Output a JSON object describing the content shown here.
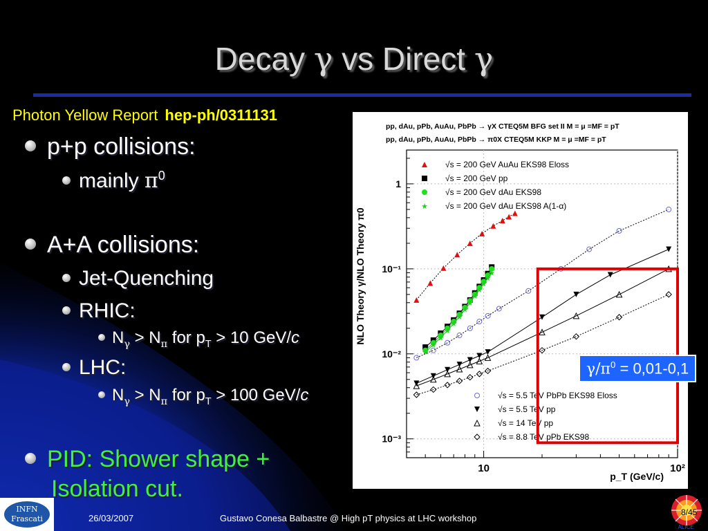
{
  "slide": {
    "title": {
      "pre": "Decay ",
      "g1": "γ",
      "mid": " vs Direct ",
      "g2": "γ"
    },
    "reference": {
      "name": "Photon Yellow Report",
      "id": "hep-ph/0311131"
    },
    "bullets": {
      "pp": "p+p collisions:",
      "mainly": "mainly ",
      "pi": "π",
      "zero": "0",
      "aa": "A+A collisions:",
      "jet": "Jet-Quenching",
      "rhic": "RHIC:",
      "lhc": "LHC:",
      "N": "N",
      "gamma": "γ",
      "gt": " > N",
      "pisub": "π",
      "forp": " for p",
      "T": "T",
      "rhic_val": " > 10 GeV/",
      "lhc_val": " > 100 GeV/",
      "c": "c",
      "pid1": "PID: Shower shape +",
      "pid2": "Isolation cut."
    },
    "callout": {
      "g": "γ/π",
      "sup": "0",
      "text": " = 0,01-0,1"
    },
    "footer": {
      "date": "26/03/2007",
      "author": "Gustavo Conesa Balbastre @ High pT physics at LHC workshop",
      "page": "8/45",
      "logo": [
        "INFN",
        "Frascati"
      ],
      "alice": "ALICE"
    }
  },
  "chart_data": {
    "type": "scatter",
    "x_scale": "log",
    "y_scale": "log",
    "xlim": [
      4,
      100
    ],
    "ylim": [
      0.0006,
      2.5
    ],
    "xlabel": "p_T (GeV/c)",
    "ylabel": "NLO Theory γ/NLO Theory π0",
    "x_ticks": [
      "10",
      "10²"
    ],
    "y_ticks": [
      "10⁻³",
      "10⁻²",
      "10⁻¹",
      "1"
    ],
    "header_lines": [
      "pp, dAu, pPb, AuAu, PbPb → γX CTEQ5M BFG set II M = μ =MF = pT",
      "pp, dAu, pPb, AuAu, PbPb → π0X CTEQ5M KKP M = μ =MF = pT"
    ],
    "legend_top": [
      "√s = 200 GeV AuAu EKS98 Eloss",
      "√s = 200 GeV pp",
      "√s = 200 GeV dAu EKS98",
      "√s = 200 GeV dAu EKS98 A(1-α)"
    ],
    "legend_bottom": [
      "√s = 5.5 TeV PbPb EKS98 Eloss",
      "√s = 5.5 TeV pp",
      "√s = 14  TeV pp",
      "√s = 8.8 TeV pPb EKS98"
    ],
    "series": [
      {
        "name": "√s = 200 GeV AuAu EKS98 Eloss",
        "marker": "triangle",
        "color": "#e01010",
        "dotted": true,
        "x": [
          4.5,
          5.3,
          6.2,
          7.3,
          8.5,
          9.8,
          11.2,
          12.5,
          13.5,
          14.5
        ],
        "y": [
          0.043,
          0.068,
          0.102,
          0.147,
          0.2,
          0.26,
          0.32,
          0.37,
          0.41,
          0.45
        ]
      },
      {
        "name": "√s = 200 GeV pp",
        "marker": "square",
        "color": "#000000",
        "x": [
          5.0,
          5.5,
          6.0,
          6.5,
          7.0,
          7.5,
          8.0,
          8.5,
          9.0,
          9.5,
          10.0,
          10.5,
          11.0
        ],
        "y": [
          0.012,
          0.0145,
          0.0175,
          0.021,
          0.025,
          0.03,
          0.036,
          0.043,
          0.052,
          0.062,
          0.074,
          0.088,
          0.105
        ]
      },
      {
        "name": "√s = 200 GeV dAu EKS98",
        "marker": "circle",
        "color": "#20e020",
        "x": [
          5.0,
          5.5,
          6.0,
          6.5,
          7.0,
          7.5,
          8.0,
          8.5,
          9.0,
          9.5,
          10.0,
          10.5,
          11.0
        ],
        "y": [
          0.011,
          0.0135,
          0.0165,
          0.02,
          0.024,
          0.029,
          0.035,
          0.042,
          0.05,
          0.06,
          0.071,
          0.084,
          0.1
        ]
      },
      {
        "name": "√s = 200 GeV dAu EKS98 A(1-α)",
        "marker": "star",
        "color": "#20d020",
        "x": [
          5.0,
          5.5,
          6.0,
          6.5,
          7.0,
          7.5,
          8.0,
          8.5,
          9.0,
          9.5,
          10.0,
          10.5,
          11.0
        ],
        "y": [
          0.0105,
          0.0128,
          0.0155,
          0.0188,
          0.0228,
          0.0275,
          0.0332,
          0.04,
          0.048,
          0.057,
          0.067,
          0.078,
          0.09
        ]
      },
      {
        "name": "√s = 5.5 TeV PbPb EKS98 Eloss",
        "marker": "open-circle",
        "color": "#6a6ad8",
        "dotted": true,
        "x": [
          4.5,
          5.5,
          6.5,
          7.5,
          8.5,
          9.5,
          10.5,
          12,
          17,
          25,
          35,
          50,
          90
        ],
        "y": [
          0.009,
          0.011,
          0.0135,
          0.0165,
          0.02,
          0.024,
          0.028,
          0.034,
          0.055,
          0.1,
          0.17,
          0.28,
          0.5
        ]
      },
      {
        "name": "√s = 5.5 TeV pp",
        "marker": "filled-triangle-down",
        "color": "#000000",
        "x": [
          4.5,
          5.5,
          6.5,
          7.5,
          8.5,
          9.5,
          10.5,
          20,
          30,
          45,
          90
        ],
        "y": [
          0.0045,
          0.0055,
          0.0065,
          0.0075,
          0.0085,
          0.0095,
          0.0105,
          0.027,
          0.05,
          0.085,
          0.17
        ]
      },
      {
        "name": "√s = 14  TeV pp",
        "marker": "open-triangle",
        "color": "#000000",
        "x": [
          4.5,
          5.5,
          6.5,
          7.5,
          8.5,
          9.5,
          10.5,
          20,
          30,
          50,
          90
        ],
        "y": [
          0.0042,
          0.005,
          0.0058,
          0.0066,
          0.0074,
          0.0082,
          0.009,
          0.018,
          0.028,
          0.05,
          0.1
        ]
      },
      {
        "name": "√s = 8.8 TeV pPb EKS98",
        "marker": "open-diamond",
        "color": "#000000",
        "dotted": true,
        "x": [
          4.5,
          5.5,
          6.5,
          7.5,
          8.5,
          9.5,
          10.5,
          20,
          30,
          50,
          90
        ],
        "y": [
          0.0033,
          0.0038,
          0.0043,
          0.0048,
          0.0053,
          0.0058,
          0.0063,
          0.011,
          0.016,
          0.027,
          0.05
        ]
      }
    ],
    "highlight_box": {
      "xlim": [
        19,
        100
      ],
      "ylim": [
        0.0009,
        0.1
      ],
      "color": "#e00000"
    }
  }
}
